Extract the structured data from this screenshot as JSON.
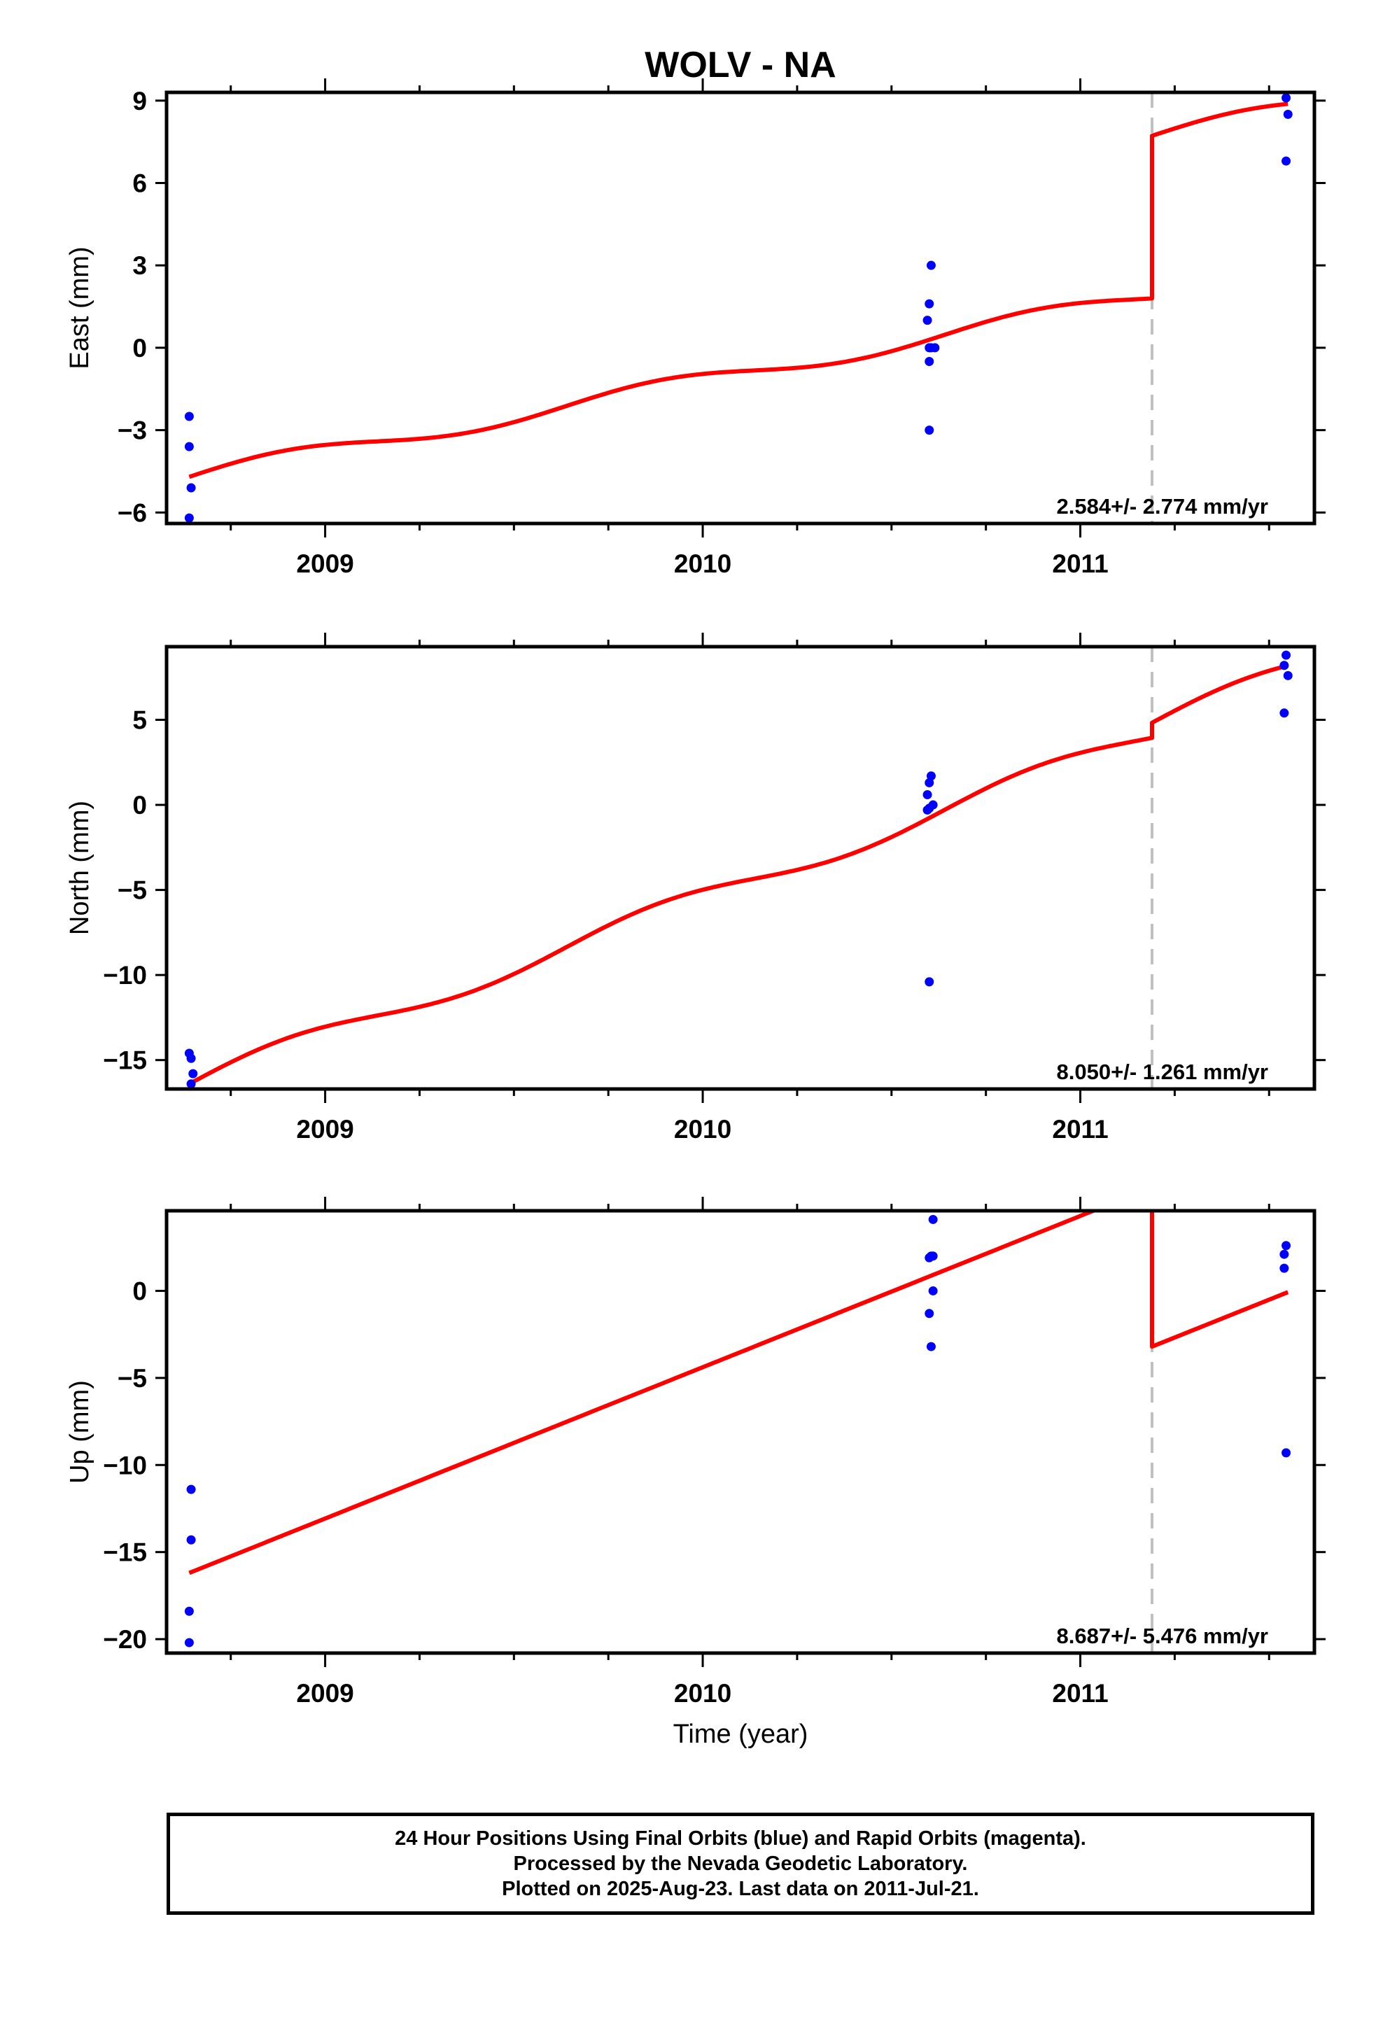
{
  "chart_data": [
    {
      "type": "scatter",
      "title": "WOLV - NA",
      "xlabel": "",
      "ylabel": "East (mm)",
      "xlim": [
        2008.58,
        2011.62
      ],
      "ylim": [
        -6.4,
        9.3
      ],
      "yticks": [
        -6,
        -3,
        0,
        3,
        6,
        9
      ],
      "yticklabels": [
        "−6",
        "−3",
        "0",
        "3",
        "6",
        "9"
      ],
      "xticks": [
        2009,
        2010,
        2011
      ],
      "xticklabels": [
        "2009",
        "2010",
        "2011"
      ],
      "step_epoch": 2011.19,
      "rate_label": "2.584+/- 2.774 mm/yr",
      "series": [
        {
          "color": "#0000ff",
          "points": [
            [
              2008.64,
              -2.5
            ],
            [
              2008.64,
              -3.6
            ],
            [
              2008.645,
              -5.1
            ],
            [
              2008.64,
              -6.2
            ],
            [
              2010.605,
              3.0
            ],
            [
              2010.6,
              1.6
            ],
            [
              2010.595,
              1.0
            ],
            [
              2010.6,
              0.0
            ],
            [
              2010.605,
              0.0
            ],
            [
              2010.615,
              0.0
            ],
            [
              2010.6,
              -0.5
            ],
            [
              2010.6,
              -3.0
            ],
            [
              2011.545,
              9.1
            ],
            [
              2011.55,
              8.5
            ],
            [
              2011.545,
              6.8
            ]
          ]
        },
        {
          "color": "#ff0000",
          "pre_step": {
            "start": 2008.64,
            "end": 2011.19,
            "y0": -4.7,
            "rate": 2.584,
            "amp": 0.3
          },
          "post_step": {
            "start": 2011.19,
            "end": 2011.55,
            "y0": 7.72,
            "rate": 2.584,
            "amp": 0.3
          }
        }
      ]
    },
    {
      "type": "scatter",
      "title": "",
      "xlabel": "",
      "ylabel": "North (mm)",
      "xlim": [
        2008.58,
        2011.62
      ],
      "ylim": [
        -16.7,
        9.3
      ],
      "yticks": [
        -15,
        -10,
        -5,
        0,
        5
      ],
      "yticklabels": [
        "−15",
        "−10",
        "−5",
        "0",
        "5"
      ],
      "xticks": [
        2009,
        2010,
        2011
      ],
      "xticklabels": [
        "2009",
        "2010",
        "2011"
      ],
      "step_epoch": 2011.19,
      "rate_label": "8.050+/- 1.261 mm/yr",
      "series": [
        {
          "color": "#0000ff",
          "points": [
            [
              2008.64,
              -14.6
            ],
            [
              2008.645,
              -14.9
            ],
            [
              2008.65,
              -15.8
            ],
            [
              2008.645,
              -16.4
            ],
            [
              2010.605,
              1.7
            ],
            [
              2010.6,
              1.3
            ],
            [
              2010.595,
              0.6
            ],
            [
              2010.61,
              0.0
            ],
            [
              2010.6,
              -0.2
            ],
            [
              2010.595,
              -0.3
            ],
            [
              2010.6,
              -10.4
            ],
            [
              2011.545,
              8.8
            ],
            [
              2011.54,
              8.2
            ],
            [
              2011.55,
              7.6
            ],
            [
              2011.54,
              5.4
            ]
          ]
        },
        {
          "color": "#ff0000",
          "pre_step": {
            "start": 2008.64,
            "end": 2011.19,
            "y0": -16.4,
            "rate": 8.05,
            "amp": 0.6
          },
          "post_step": {
            "start": 2011.19,
            "end": 2011.55,
            "y0": 4.83,
            "rate": 8.05,
            "amp": 0.6
          }
        }
      ]
    },
    {
      "type": "scatter",
      "title": "",
      "xlabel": "Time (year)",
      "ylabel": "Up (mm)",
      "xlim": [
        2008.58,
        2011.62
      ],
      "ylim": [
        -20.8,
        4.6
      ],
      "yticks": [
        -20,
        -15,
        -10,
        -5,
        0
      ],
      "yticklabels": [
        "−20",
        "−15",
        "−10",
        "−5",
        "0"
      ],
      "xticks": [
        2009,
        2010,
        2011
      ],
      "xticklabels": [
        "2009",
        "2010",
        "2011"
      ],
      "step_epoch": 2011.19,
      "rate_label": "8.687+/- 5.476 mm/yr",
      "series": [
        {
          "color": "#0000ff",
          "points": [
            [
              2008.645,
              -11.4
            ],
            [
              2008.645,
              -14.3
            ],
            [
              2008.64,
              -18.4
            ],
            [
              2008.64,
              -20.2
            ],
            [
              2010.61,
              4.1
            ],
            [
              2010.605,
              2.0
            ],
            [
              2010.61,
              2.0
            ],
            [
              2010.6,
              1.9
            ],
            [
              2010.61,
              0.0
            ],
            [
              2010.6,
              -1.3
            ],
            [
              2010.605,
              -3.2
            ],
            [
              2011.545,
              2.6
            ],
            [
              2011.54,
              2.1
            ],
            [
              2011.54,
              1.3
            ],
            [
              2011.545,
              -9.3
            ]
          ]
        },
        {
          "color": "#ff0000",
          "pre_step": {
            "start": 2008.64,
            "end": 2011.19,
            "y0": -16.2,
            "rate": 8.687,
            "amp": 0.0
          },
          "post_step": {
            "start": 2011.19,
            "end": 2011.55,
            "y0": -3.2,
            "rate": 8.687,
            "amp": 0.0
          }
        }
      ]
    }
  ],
  "footer": {
    "line1": "24 Hour Positions Using Final Orbits (blue) and Rapid Orbits (magenta).",
    "line2": "Processed by the Nevada Geodetic Laboratory.",
    "line3": "Plotted on 2025-Aug-23. Last data on 2011-Jul-21."
  }
}
